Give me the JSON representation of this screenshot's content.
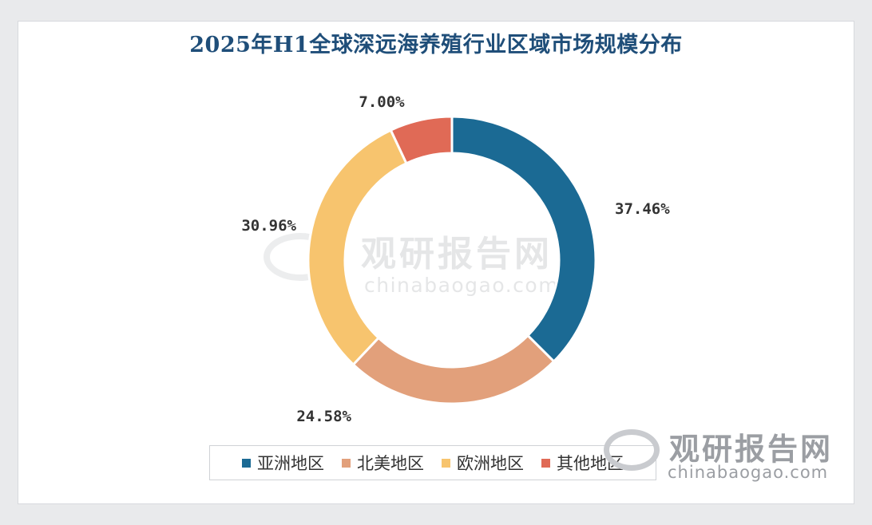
{
  "chart_data": {
    "type": "pie",
    "title": "2025年H1全球深远海养殖行业区域市场规模分布",
    "categories": [
      "亚洲地区",
      "北美地区",
      "欧洲地区",
      "其他地区"
    ],
    "values": [
      37.46,
      24.58,
      30.96,
      7.0
    ],
    "value_labels": [
      "37.46%",
      "24.58%",
      "30.96%",
      "7.00%"
    ],
    "colors": [
      "#1b6a94",
      "#e2a07b",
      "#f7c46e",
      "#e06a56"
    ],
    "legend_position": "bottom"
  },
  "watermark": {
    "brand": "观研报告网",
    "url": "chinabaogao.com"
  }
}
